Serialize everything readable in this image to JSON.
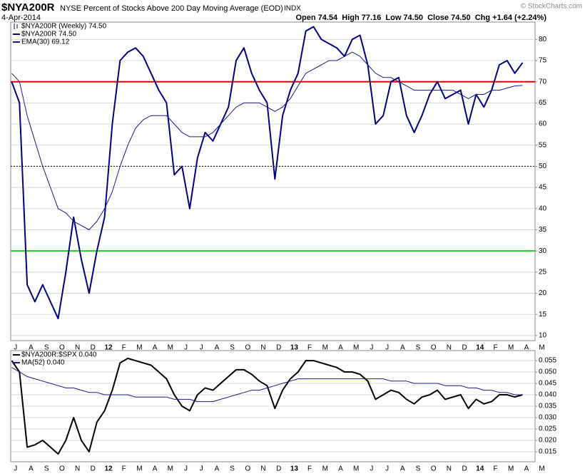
{
  "header": {
    "symbol": "$NYA200R",
    "description": "NYSE Percent of Stocks Above 200 Day Moving Average (EOD)",
    "exchange": "INDX",
    "date": "4-Apr-2014",
    "quote": "Open 74.54  High 77.16  Low 74.50  Close 74.50  Chg +1.64 (+2.24%)",
    "credit": "© StockCharts.com"
  },
  "chart_data": [
    {
      "type": "line",
      "price_label": "$NYA200R (Weekly) 74.50",
      "categories": [
        "J",
        null,
        "A",
        null,
        "S",
        null,
        "O",
        null,
        "N",
        null,
        "D",
        null,
        "12",
        null,
        "F",
        null,
        "M",
        null,
        "A",
        null,
        "M",
        null,
        "J",
        null,
        "J",
        null,
        "A",
        null,
        "S",
        null,
        "O",
        null,
        "N",
        null,
        "D",
        null,
        "13",
        null,
        "F",
        null,
        "M",
        null,
        "A",
        null,
        "M",
        null,
        "J",
        null,
        "J",
        null,
        "A",
        null,
        "S",
        null,
        "O",
        null,
        "N",
        null,
        "D",
        null,
        "14",
        null,
        "F",
        null,
        "M",
        null,
        "A",
        null,
        "M",
        null
      ],
      "series": [
        {
          "name": "$NYA200R 74.50",
          "color": "#000080",
          "width": 2,
          "values": [
            70,
            65,
            22,
            18,
            22,
            18,
            14,
            25,
            38,
            28,
            20,
            30,
            38,
            60,
            75,
            77,
            78,
            76,
            72,
            68,
            65,
            48,
            50,
            40,
            52,
            58,
            56,
            60,
            64,
            75,
            78,
            72,
            68,
            65,
            47,
            62,
            68,
            72,
            82,
            83,
            80,
            79,
            78,
            76,
            80,
            81,
            74,
            60,
            62,
            70,
            71,
            62,
            58,
            62,
            67,
            70,
            66,
            67,
            68,
            60,
            67,
            64,
            68,
            74,
            75,
            72,
            74.5,
            null,
            null,
            null
          ]
        },
        {
          "name": "EMA(30) 69.12",
          "color": "#1a1a8c",
          "width": 1,
          "values": [
            72,
            70,
            62,
            56,
            50,
            45,
            40,
            39,
            37,
            36,
            35,
            37,
            40,
            44,
            50,
            55,
            59,
            61,
            62,
            62,
            62,
            60,
            58,
            57,
            57,
            57,
            58,
            60,
            62,
            64,
            65,
            65,
            65,
            64,
            63,
            64,
            66,
            69,
            72,
            73,
            74,
            75,
            75,
            76,
            77,
            76,
            74,
            72,
            71,
            71,
            70,
            69,
            68,
            68,
            68,
            68,
            68,
            68,
            67,
            66,
            67,
            67,
            68,
            68,
            68.5,
            69,
            69.12,
            null,
            null,
            null
          ]
        }
      ],
      "reference_lines": [
        {
          "value": 70,
          "color": "#dd0000",
          "style": "solid"
        },
        {
          "value": 50,
          "color": "#000000",
          "style": "dotted"
        },
        {
          "value": 30,
          "color": "#22cc22",
          "style": "solid"
        }
      ],
      "ylim": [
        8.8,
        84.1
      ],
      "yticks": [
        10,
        15,
        20,
        25,
        30,
        35,
        40,
        45,
        50,
        55,
        60,
        65,
        70,
        75,
        80
      ],
      "grid": true
    },
    {
      "type": "line",
      "categories": [
        "J",
        null,
        "A",
        null,
        "S",
        null,
        "O",
        null,
        "N",
        null,
        "D",
        null,
        "12",
        null,
        "F",
        null,
        "M",
        null,
        "A",
        null,
        "M",
        null,
        "J",
        null,
        "J",
        null,
        "A",
        null,
        "S",
        null,
        "O",
        null,
        "N",
        null,
        "D",
        null,
        "13",
        null,
        "F",
        null,
        "M",
        null,
        "A",
        null,
        "M",
        null,
        "J",
        null,
        "J",
        null,
        "A",
        null,
        "S",
        null,
        "O",
        null,
        "N",
        null,
        "D",
        null,
        "14",
        null,
        "F",
        null,
        "M",
        null,
        "A",
        null,
        "M",
        null
      ],
      "series": [
        {
          "name": "$NYA200R:$SPX 0.040",
          "color": "#000000",
          "width": 2,
          "values": [
            0.055,
            0.05,
            0.017,
            0.018,
            0.02,
            0.017,
            0.014,
            0.02,
            0.03,
            0.02,
            0.015,
            0.028,
            0.033,
            0.042,
            0.054,
            0.056,
            0.055,
            0.054,
            0.053,
            0.05,
            0.047,
            0.04,
            0.035,
            0.033,
            0.04,
            0.043,
            0.042,
            0.045,
            0.048,
            0.051,
            0.051,
            0.049,
            0.046,
            0.044,
            0.034,
            0.042,
            0.047,
            0.05,
            0.055,
            0.055,
            0.054,
            0.053,
            0.052,
            0.05,
            0.05,
            0.049,
            0.046,
            0.038,
            0.04,
            0.042,
            0.041,
            0.038,
            0.036,
            0.039,
            0.04,
            0.042,
            0.038,
            0.039,
            0.04,
            0.034,
            0.038,
            0.036,
            0.037,
            0.04,
            0.04,
            0.039,
            0.04,
            null,
            null,
            null
          ]
        },
        {
          "name": "MA(52) 0.040",
          "color": "#1a1a8c",
          "width": 1,
          "values": [
            0.052,
            0.05,
            0.048,
            0.047,
            0.046,
            0.045,
            0.044,
            0.043,
            0.043,
            0.042,
            0.041,
            0.041,
            0.04,
            0.04,
            0.04,
            0.04,
            0.039,
            0.039,
            0.039,
            0.039,
            0.039,
            0.038,
            0.038,
            0.038,
            0.037,
            0.037,
            0.037,
            0.038,
            0.039,
            0.04,
            0.041,
            0.042,
            0.042,
            0.043,
            0.044,
            0.045,
            0.046,
            0.047,
            0.047,
            0.047,
            0.047,
            0.047,
            0.047,
            0.047,
            0.047,
            0.047,
            0.047,
            0.047,
            0.047,
            0.046,
            0.046,
            0.046,
            0.045,
            0.045,
            0.045,
            0.045,
            0.044,
            0.044,
            0.044,
            0.043,
            0.043,
            0.042,
            0.042,
            0.041,
            0.041,
            0.04,
            0.04,
            null,
            null,
            null
          ]
        }
      ],
      "ylim": [
        0.0106,
        0.0594
      ],
      "yticks": [
        0.015,
        {
          "value": 0.02,
          "label": "0.020"
        },
        0.025,
        {
          "value": 0.03,
          "label": "0.030"
        },
        0.035,
        {
          "value": 0.04,
          "label": "0.040"
        },
        0.045,
        {
          "value": 0.05,
          "label": "0.050"
        },
        0.055
      ],
      "grid": true
    }
  ]
}
